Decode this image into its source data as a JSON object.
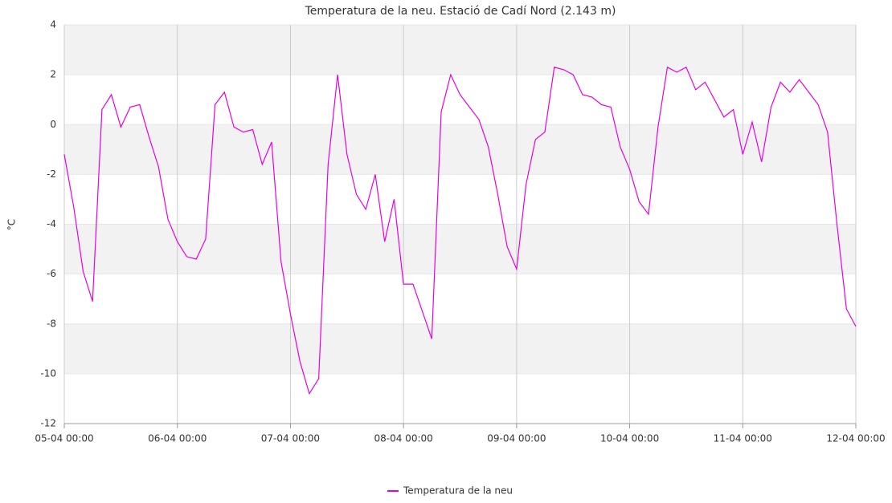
{
  "chart_data": {
    "type": "line",
    "title": "Temperatura de la neu. Estació de Cadí Nord (2.143 m)",
    "y_label": "°C",
    "x": [
      "05-04 00:00",
      "05-04 02:00",
      "05-04 04:00",
      "05-04 06:00",
      "05-04 08:00",
      "05-04 10:00",
      "05-04 12:00",
      "05-04 14:00",
      "05-04 16:00",
      "05-04 18:00",
      "05-04 20:00",
      "05-04 22:00",
      "06-04 00:00",
      "06-04 02:00",
      "06-04 04:00",
      "06-04 06:00",
      "06-04 08:00",
      "06-04 10:00",
      "06-04 12:00",
      "06-04 14:00",
      "06-04 16:00",
      "06-04 18:00",
      "06-04 20:00",
      "06-04 22:00",
      "07-04 00:00",
      "07-04 02:00",
      "07-04 04:00",
      "07-04 06:00",
      "07-04 08:00",
      "07-04 10:00",
      "07-04 12:00",
      "07-04 14:00",
      "07-04 16:00",
      "07-04 18:00",
      "07-04 20:00",
      "07-04 22:00",
      "08-04 00:00",
      "08-04 02:00",
      "08-04 04:00",
      "08-04 06:00",
      "08-04 08:00",
      "08-04 10:00",
      "08-04 12:00",
      "08-04 14:00",
      "08-04 16:00",
      "08-04 18:00",
      "08-04 20:00",
      "08-04 22:00",
      "09-04 00:00",
      "09-04 02:00",
      "09-04 04:00",
      "09-04 06:00",
      "09-04 08:00",
      "09-04 10:00",
      "09-04 12:00",
      "09-04 14:00",
      "09-04 16:00",
      "09-04 18:00",
      "09-04 20:00",
      "09-04 22:00",
      "10-04 00:00",
      "10-04 02:00",
      "10-04 04:00",
      "10-04 06:00",
      "10-04 08:00",
      "10-04 10:00",
      "10-04 12:00",
      "10-04 14:00",
      "10-04 16:00",
      "10-04 18:00",
      "10-04 20:00",
      "10-04 22:00",
      "11-04 00:00",
      "11-04 02:00",
      "11-04 04:00",
      "11-04 06:00",
      "11-04 08:00",
      "11-04 10:00",
      "11-04 12:00",
      "11-04 14:00",
      "11-04 16:00",
      "11-04 18:00",
      "11-04 20:00",
      "11-04 22:00",
      "12-04 00:00"
    ],
    "series": [
      {
        "name": "Temperatura de la neu",
        "color": "#e600e6",
        "values": [
          -1.2,
          -3.3,
          -5.9,
          -7.1,
          0.6,
          1.2,
          -0.1,
          0.7,
          0.8,
          -0.5,
          -1.7,
          -3.8,
          -4.7,
          -5.3,
          -5.4,
          -4.6,
          0.8,
          1.3,
          -0.1,
          -0.3,
          -0.2,
          -1.6,
          -0.7,
          -5.5,
          -7.6,
          -9.5,
          -10.8,
          -10.2,
          -1.6,
          2.0,
          -1.2,
          -2.8,
          -3.4,
          -2.0,
          -4.7,
          -3.0,
          -6.4,
          -6.4,
          -7.5,
          -8.6,
          0.5,
          2.0,
          1.2,
          0.7,
          0.2,
          -0.9,
          -2.8,
          -4.9,
          -5.8,
          -2.4,
          -0.6,
          -0.3,
          2.3,
          2.2,
          2.0,
          1.2,
          1.1,
          0.8,
          0.7,
          -0.9,
          -1.8,
          -3.1,
          -3.6,
          -0.1,
          2.3,
          2.1,
          2.3,
          1.4,
          1.7,
          1.0,
          0.3,
          0.6,
          -1.2,
          0.1,
          -1.5,
          0.7,
          1.7,
          1.3,
          1.8,
          1.3,
          0.8,
          -0.3,
          -4.0,
          -7.4,
          -8.1
        ]
      }
    ],
    "xlim": [
      "05-04 00:00",
      "12-04 00:00"
    ],
    "xticks": [
      "05-04 00:00",
      "06-04 00:00",
      "07-04 00:00",
      "08-04 00:00",
      "09-04 00:00",
      "10-04 00:00",
      "11-04 00:00",
      "12-04 00:00"
    ],
    "ylim": [
      -12,
      4
    ],
    "yticks": [
      -12,
      -10,
      -8,
      -6,
      -4,
      -2,
      0,
      2,
      4
    ],
    "grid": true,
    "legend": "bottom"
  }
}
